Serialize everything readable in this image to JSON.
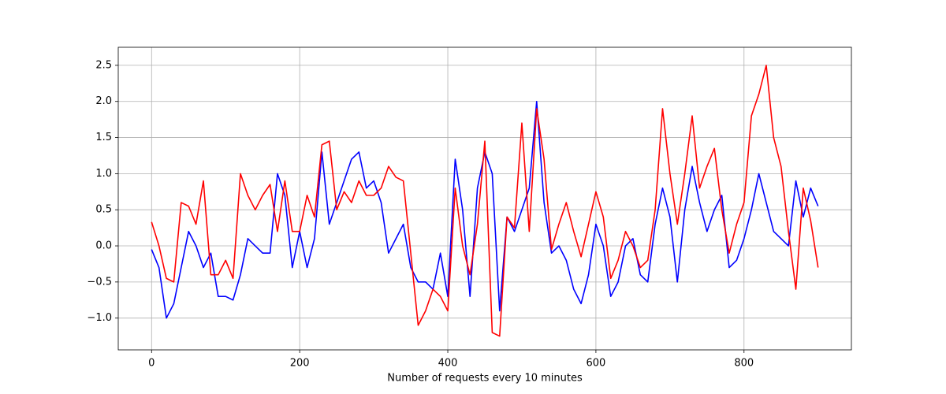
{
  "chart_data": {
    "type": "line",
    "xlabel": "Number of requests every 10 minutes",
    "x": [
      0,
      10,
      20,
      30,
      40,
      50,
      60,
      70,
      80,
      90,
      100,
      110,
      120,
      130,
      140,
      150,
      160,
      170,
      180,
      190,
      200,
      210,
      220,
      230,
      240,
      250,
      260,
      270,
      280,
      290,
      300,
      310,
      320,
      330,
      340,
      350,
      360,
      370,
      380,
      390,
      400,
      410,
      420,
      430,
      440,
      450,
      460,
      470,
      480,
      490,
      500,
      510,
      520,
      530,
      540,
      550,
      560,
      570,
      580,
      590,
      600,
      610,
      620,
      630,
      640,
      650,
      660,
      670,
      680,
      690,
      700,
      710,
      720,
      730,
      740,
      750,
      760,
      770,
      780,
      790,
      800,
      810,
      820,
      830,
      840,
      850,
      860,
      870,
      880,
      890,
      900
    ],
    "series": [
      {
        "color": "#0000ff",
        "values": [
          -0.05,
          -0.3,
          -1.0,
          -0.8,
          -0.3,
          0.2,
          0.0,
          -0.3,
          -0.1,
          -0.7,
          -0.7,
          -0.75,
          -0.4,
          0.1,
          0.0,
          -0.1,
          -0.1,
          1.0,
          0.7,
          -0.3,
          0.2,
          -0.3,
          0.1,
          1.3,
          0.3,
          0.6,
          0.9,
          1.2,
          1.3,
          0.8,
          0.9,
          0.6,
          -0.1,
          0.1,
          0.3,
          -0.3,
          -0.5,
          -0.5,
          -0.6,
          -0.1,
          -0.7,
          1.2,
          0.5,
          -0.7,
          0.8,
          1.3,
          1.0,
          -0.9,
          0.4,
          0.2,
          0.5,
          0.8,
          2.0,
          0.6,
          -0.1,
          0.0,
          -0.2,
          -0.6,
          -0.8,
          -0.4,
          0.3,
          0.0,
          -0.7,
          -0.5,
          0.0,
          0.1,
          -0.4,
          -0.5,
          0.3,
          0.8,
          0.4,
          -0.5,
          0.5,
          1.1,
          0.6,
          0.2,
          0.5,
          0.7,
          -0.3,
          -0.2,
          0.1,
          0.5,
          1.0,
          0.6,
          0.2,
          0.1,
          0.0,
          0.9,
          0.4,
          0.8,
          0.55
        ]
      },
      {
        "color": "#ff0000",
        "values": [
          0.33,
          0.0,
          -0.45,
          -0.5,
          0.6,
          0.55,
          0.3,
          0.9,
          -0.4,
          -0.4,
          -0.2,
          -0.45,
          1.0,
          0.7,
          0.5,
          0.7,
          0.85,
          0.2,
          0.9,
          0.2,
          0.2,
          0.7,
          0.4,
          1.4,
          1.45,
          0.5,
          0.75,
          0.6,
          0.9,
          0.7,
          0.7,
          0.8,
          1.1,
          0.95,
          0.9,
          -0.1,
          -1.1,
          -0.9,
          -0.6,
          -0.7,
          -0.9,
          0.8,
          0.0,
          -0.4,
          0.3,
          1.45,
          -1.2,
          -1.25,
          0.4,
          0.25,
          1.7,
          0.2,
          1.9,
          1.2,
          -0.05,
          0.3,
          0.6,
          0.2,
          -0.15,
          0.3,
          0.75,
          0.4,
          -0.45,
          -0.2,
          0.2,
          0.0,
          -0.3,
          -0.2,
          0.5,
          1.9,
          1.0,
          0.3,
          1.0,
          1.8,
          0.8,
          1.1,
          1.35,
          0.5,
          -0.1,
          0.3,
          0.6,
          1.8,
          2.1,
          2.5,
          1.5,
          1.1,
          0.2,
          -0.6,
          0.8,
          0.35,
          -0.3
        ]
      }
    ],
    "xlim": [
      -45,
      945
    ],
    "ylim": [
      -1.44,
      2.75
    ],
    "xticks": [
      0,
      200,
      400,
      600,
      800
    ],
    "yticks": [
      {
        "value": -1,
        "label": "−1.0"
      },
      {
        "value": -0.5,
        "label": "−0.5"
      },
      {
        "value": 0,
        "label": "0.0"
      },
      {
        "value": 0.5,
        "label": "0.5"
      },
      {
        "value": 1,
        "label": "1.0"
      },
      {
        "value": 1.5,
        "label": "1.5"
      },
      {
        "value": 2,
        "label": "2.0"
      },
      {
        "value": 2.5,
        "label": "2.5"
      }
    ],
    "grid": true
  }
}
